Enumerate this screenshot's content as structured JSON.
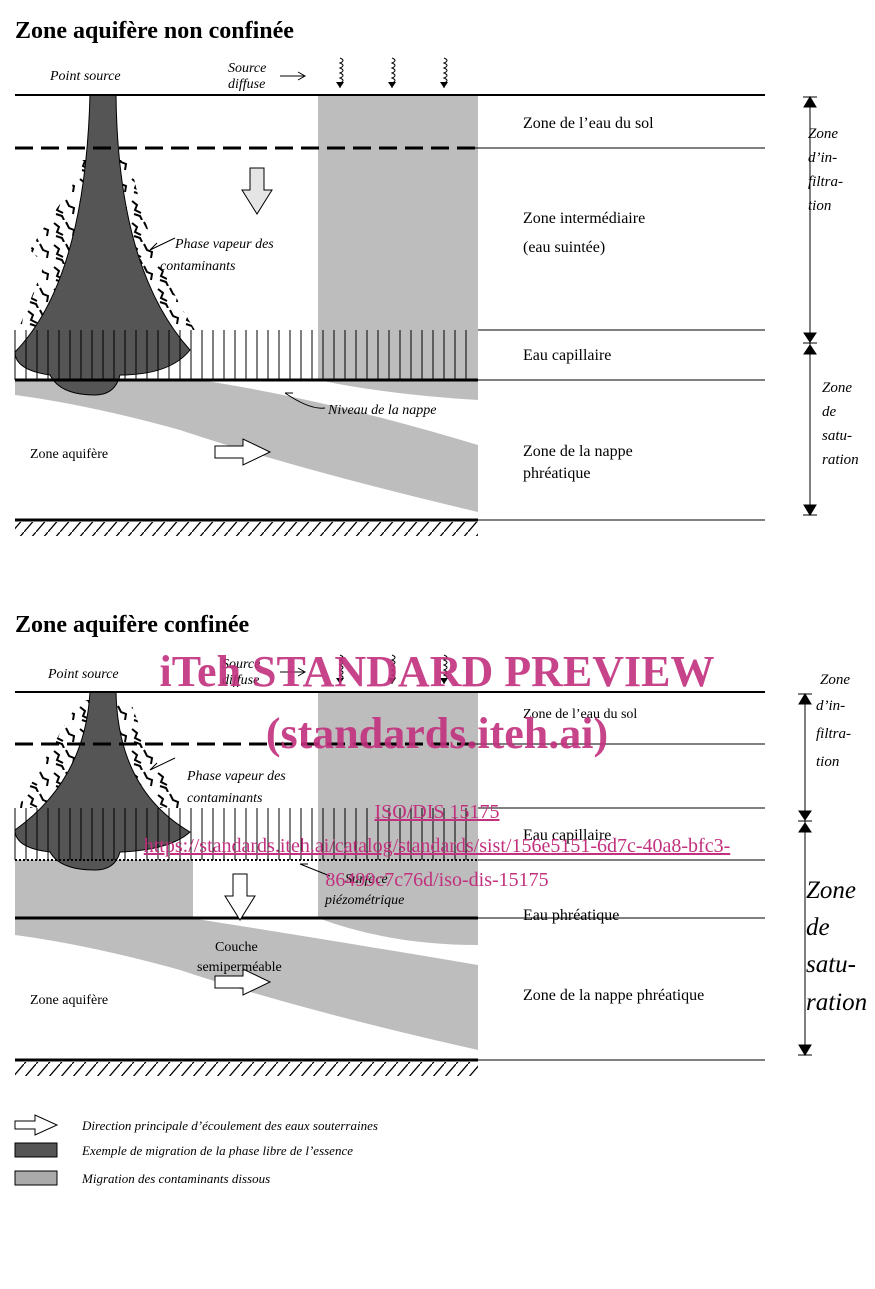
{
  "unconfined": {
    "title": "Zone aquifère non confinée",
    "point_source": "Point source",
    "diffuse_source": [
      "Source",
      "diffuse"
    ],
    "soil_water": "Zone de l’eau du sol",
    "intermediate": [
      "Zone intermédiaire",
      "(eau suintée)"
    ],
    "vapour": [
      "Phase vapeur des",
      "contaminants"
    ],
    "capillary": "Eau capillaire",
    "water_table": "Niveau de la nappe",
    "aquifer": "Zone aquifère",
    "groundwater": [
      "Zone de la nappe",
      "phréatique"
    ],
    "infiltration": [
      "Zone",
      "d’in-",
      "filtra-",
      "tion"
    ],
    "saturation": [
      "Zone",
      "de",
      "satu-",
      "ration"
    ]
  },
  "confined": {
    "title": "Zone aquifère confinée",
    "point_source": "Point source",
    "diffuse_source": [
      "Source",
      "diffuse"
    ],
    "soil_water": "Zone de l’eau du sol",
    "vapour": [
      "Phase vapeur des",
      "contaminants"
    ],
    "capillary": "Eau capillaire",
    "piezometric": [
      "Surface",
      "piézométrique"
    ],
    "phreatic": "Eau phréatique",
    "layer": [
      "Couche",
      "semiperméable"
    ],
    "aquifer": "Zone aquifère",
    "groundwater": "Zone de la nappe phréatique",
    "infiltration": [
      "Zone",
      "d’in-",
      "filtra-",
      "tion"
    ],
    "saturation": [
      "Zone",
      "de",
      "satu-",
      "ration"
    ]
  },
  "watermark": {
    "line1": "iTeh STANDARD PREVIEW",
    "line2": "(standards.iteh.ai)",
    "code": "ISO/DIS 15175",
    "url1": "https://standards.iteh.ai/catalog/standards/sist/156e5151-6d7c-40a8-bfc3-",
    "url2": "86499c7c76d/iso-dis-15175"
  },
  "legend": [
    "Direction principale d’écoulement des eaux souterraines",
    "Exemple de migration de  la phase libre de l’essence",
    "Migration des contaminants dissous"
  ]
}
